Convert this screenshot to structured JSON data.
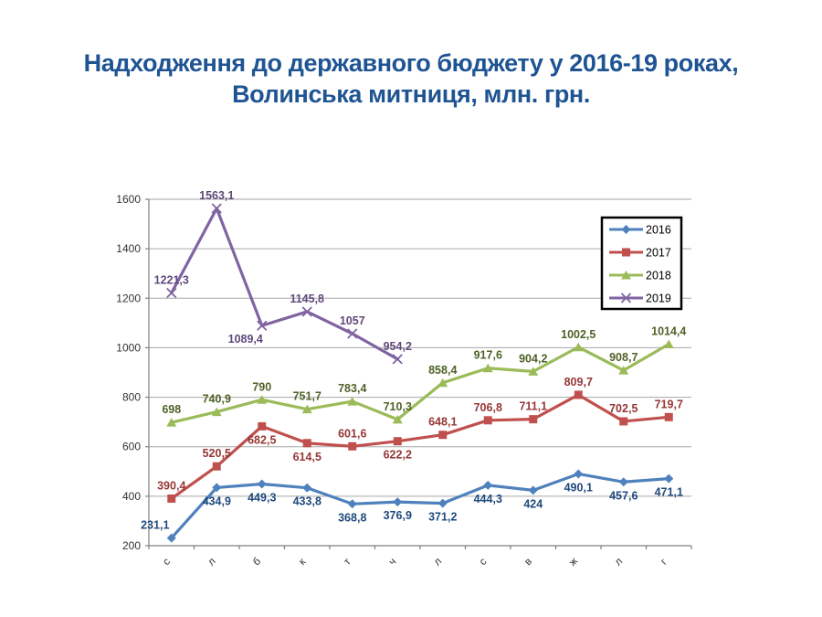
{
  "title": {
    "line1": "Надходження до державного бюджету у 2016-19 роках,",
    "line2": "Волинська митниця, млн. грн.",
    "color": "#1F5493"
  },
  "chart_data": {
    "type": "line",
    "title": "Надходження до державного бюджету у 2016-19 роках, Волинська митниця, млн. грн.",
    "xlabel": "",
    "ylabel": "",
    "categories": [
      "с",
      "л",
      "б",
      "к",
      "т",
      "ч",
      "л",
      "с",
      "в",
      "ж",
      "л",
      "г"
    ],
    "ylim": [
      200,
      1600
    ],
    "yticks": [
      200,
      400,
      600,
      800,
      1000,
      1200,
      1400,
      1600
    ],
    "grid": true,
    "legend_position": "top-right",
    "grid_color": "#A6A6A6",
    "axis_color": "#808080",
    "tick_label_color": "#333333",
    "series": [
      {
        "name": "2016",
        "color": "#4F81BD",
        "label_color": "#1F497D",
        "marker": "diamond",
        "values": [
          231.1,
          434.9,
          449.3,
          433.8,
          368.8,
          376.9,
          371.2,
          444.3,
          424,
          490.1,
          457.6,
          471.1
        ],
        "labels": [
          "231,1",
          "434,9",
          "449,3",
          "433,8",
          "368,8",
          "376,9",
          "371,2",
          "444,3",
          "424",
          "490,1",
          "457,6",
          "471,1"
        ],
        "label_pos": [
          "above-left",
          "below",
          "below",
          "below",
          "below",
          "below",
          "below",
          "below",
          "below",
          "below",
          "below",
          "below"
        ]
      },
      {
        "name": "2017",
        "color": "#C0504D",
        "label_color": "#953735",
        "marker": "square",
        "values": [
          390.4,
          520.5,
          682.5,
          614.5,
          601.6,
          622.2,
          648.1,
          706.8,
          711.1,
          809.7,
          702.5,
          719.7
        ],
        "labels": [
          "390,4",
          "520,5",
          "682,5",
          "614,5",
          "601,6",
          "622,2",
          "648,1",
          "706,8",
          "711,1",
          "809,7",
          "702,5",
          "719,7"
        ],
        "label_pos": [
          "above",
          "above",
          "below",
          "below",
          "above",
          "below",
          "above",
          "above",
          "above",
          "above",
          "above",
          "above"
        ]
      },
      {
        "name": "2018",
        "color": "#9BBB59",
        "label_color": "#4F6228",
        "marker": "triangle",
        "values": [
          698,
          740.9,
          790,
          751.7,
          783.4,
          710.3,
          858.4,
          917.6,
          904.2,
          1002.5,
          908.7,
          1014.4
        ],
        "labels": [
          "698",
          "740,9",
          "790",
          "751,7",
          "783,4",
          "710,3",
          "858,4",
          "917,6",
          "904,2",
          "1002,5",
          "908,7",
          "1014,4"
        ],
        "label_pos": [
          "above",
          "above",
          "above",
          "above",
          "above",
          "above",
          "above",
          "above",
          "above",
          "above",
          "above",
          "above"
        ]
      },
      {
        "name": "2019",
        "color": "#8064A2",
        "label_color": "#60497B",
        "marker": "x",
        "values": [
          1221.3,
          1563.1,
          1089.4,
          1145.8,
          1057,
          954.2
        ],
        "labels": [
          "1221,3",
          "1563,1",
          "1089,4",
          "1145,8",
          "1057",
          "954,2"
        ],
        "label_pos": [
          "above",
          "above",
          "below-left",
          "above",
          "above",
          "above"
        ]
      }
    ]
  }
}
